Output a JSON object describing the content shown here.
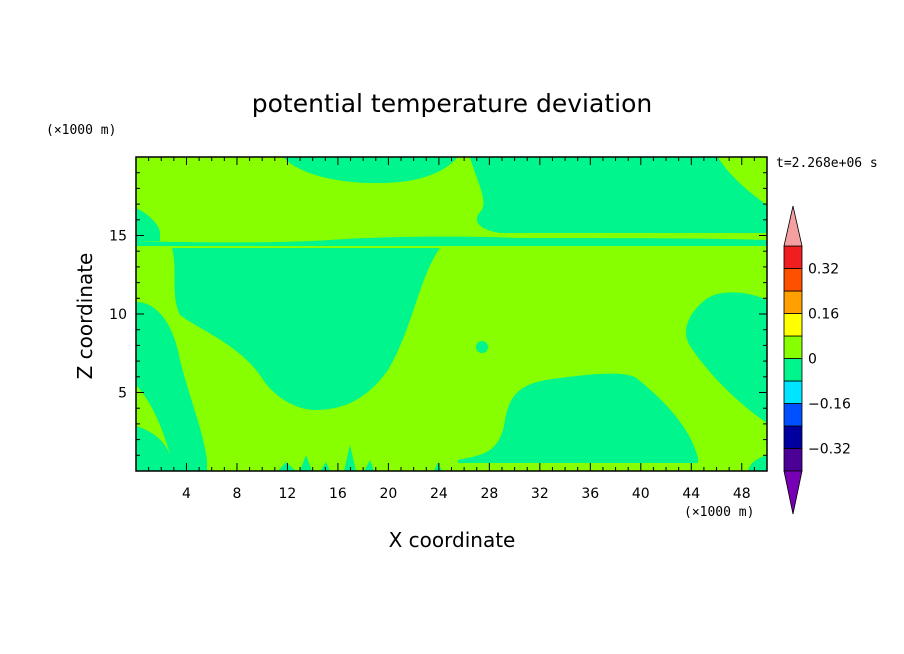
{
  "chart_data": {
    "type": "heatmap",
    "title": "potential temperature deviation",
    "xlabel": "X coordinate",
    "ylabel": "Z coordinate",
    "x_units": "(×1000 m)",
    "y_units": "(×1000 m)",
    "time_label": "t=2.268e+06 s",
    "xlim": [
      0,
      50
    ],
    "ylim": [
      0,
      20
    ],
    "x_ticks": [
      4,
      8,
      12,
      16,
      20,
      24,
      28,
      32,
      36,
      40,
      44,
      48
    ],
    "y_ticks": [
      5,
      10,
      15
    ],
    "colorbar": {
      "levels": [
        -0.4,
        -0.32,
        -0.24,
        -0.16,
        -0.08,
        0,
        0.08,
        0.16,
        0.24,
        0.32,
        0.4
      ],
      "labeled_levels": [
        0.32,
        0.16,
        0,
        -0.16,
        -0.32
      ],
      "labels": [
        "0.32",
        "0.16",
        "0",
        "−0.16",
        "−0.32"
      ],
      "colors_low_to_high": [
        "#4B0096",
        "#0000A0",
        "#0050FF",
        "#00E5FF",
        "#00F58C",
        "#87FF00",
        "#FFFF00",
        "#FFA000",
        "#FF5000",
        "#F01E1E"
      ],
      "under_color": "#7800B4",
      "over_color": "#F5A0A0"
    },
    "field": {
      "background_color": "#87FF00",
      "anomaly_color": "#00F58C",
      "value_range": "0 to -0.08 in anomaly regions, 0 to 0.08 elsewhere"
    }
  }
}
